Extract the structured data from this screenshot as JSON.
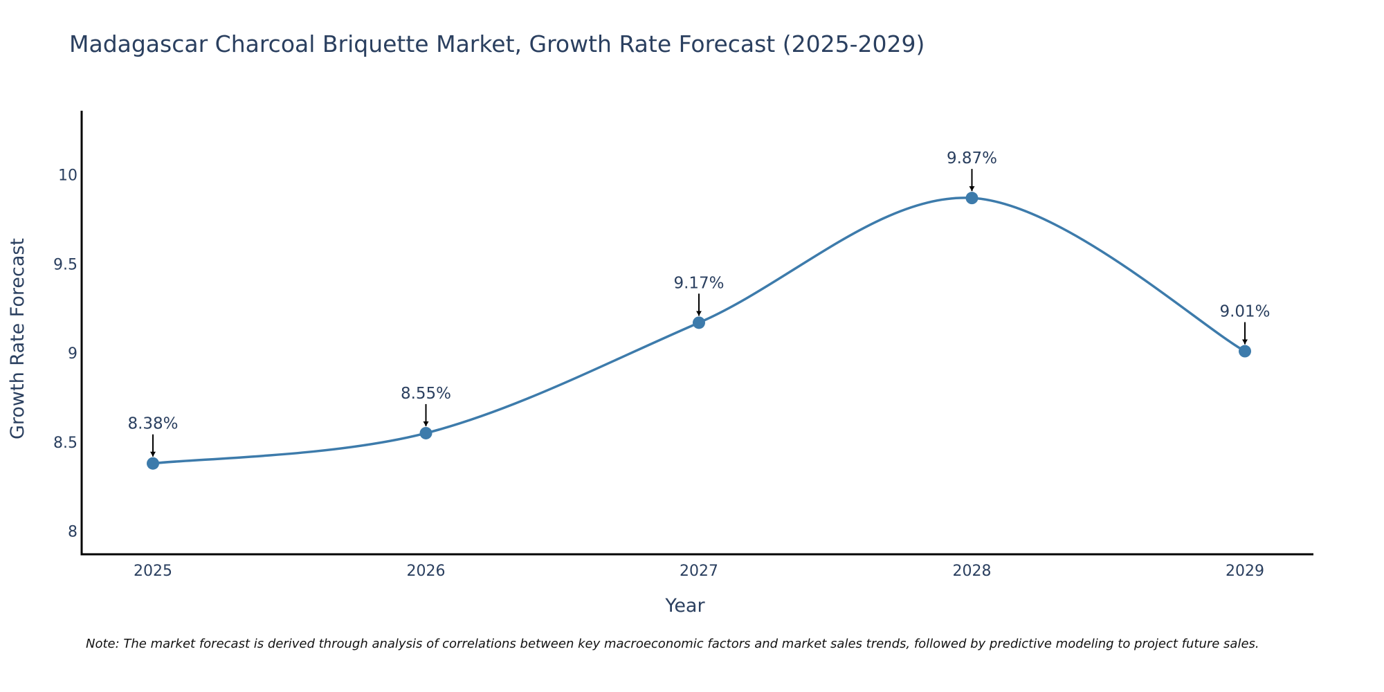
{
  "chart_data": {
    "type": "line",
    "title": "Madagascar Charcoal Briquette Market, Growth Rate Forecast (2025-2029)",
    "xlabel": "Year",
    "ylabel": "Growth Rate Forecast",
    "categories": [
      "2025",
      "2026",
      "2027",
      "2028",
      "2029"
    ],
    "series": [
      {
        "name": "Growth Rate Forecast",
        "values": [
          8.38,
          8.55,
          9.17,
          9.87,
          9.01
        ],
        "color": "#3d7bab"
      }
    ],
    "annotations": [
      "8.38%",
      "8.55%",
      "9.17%",
      "9.87%",
      "9.01%"
    ],
    "ylim": [
      7.87,
      10.36
    ],
    "yticks": [
      8,
      8.5,
      9,
      9.5,
      10
    ],
    "ytick_labels": [
      "8",
      "8.5",
      "9",
      "9.5",
      "10"
    ],
    "grid": false,
    "line_shape": "spline"
  },
  "note": "Note: The market forecast is derived through analysis of correlations between key macroeconomic factors and market sales trends, followed by predictive modeling to project future sales."
}
